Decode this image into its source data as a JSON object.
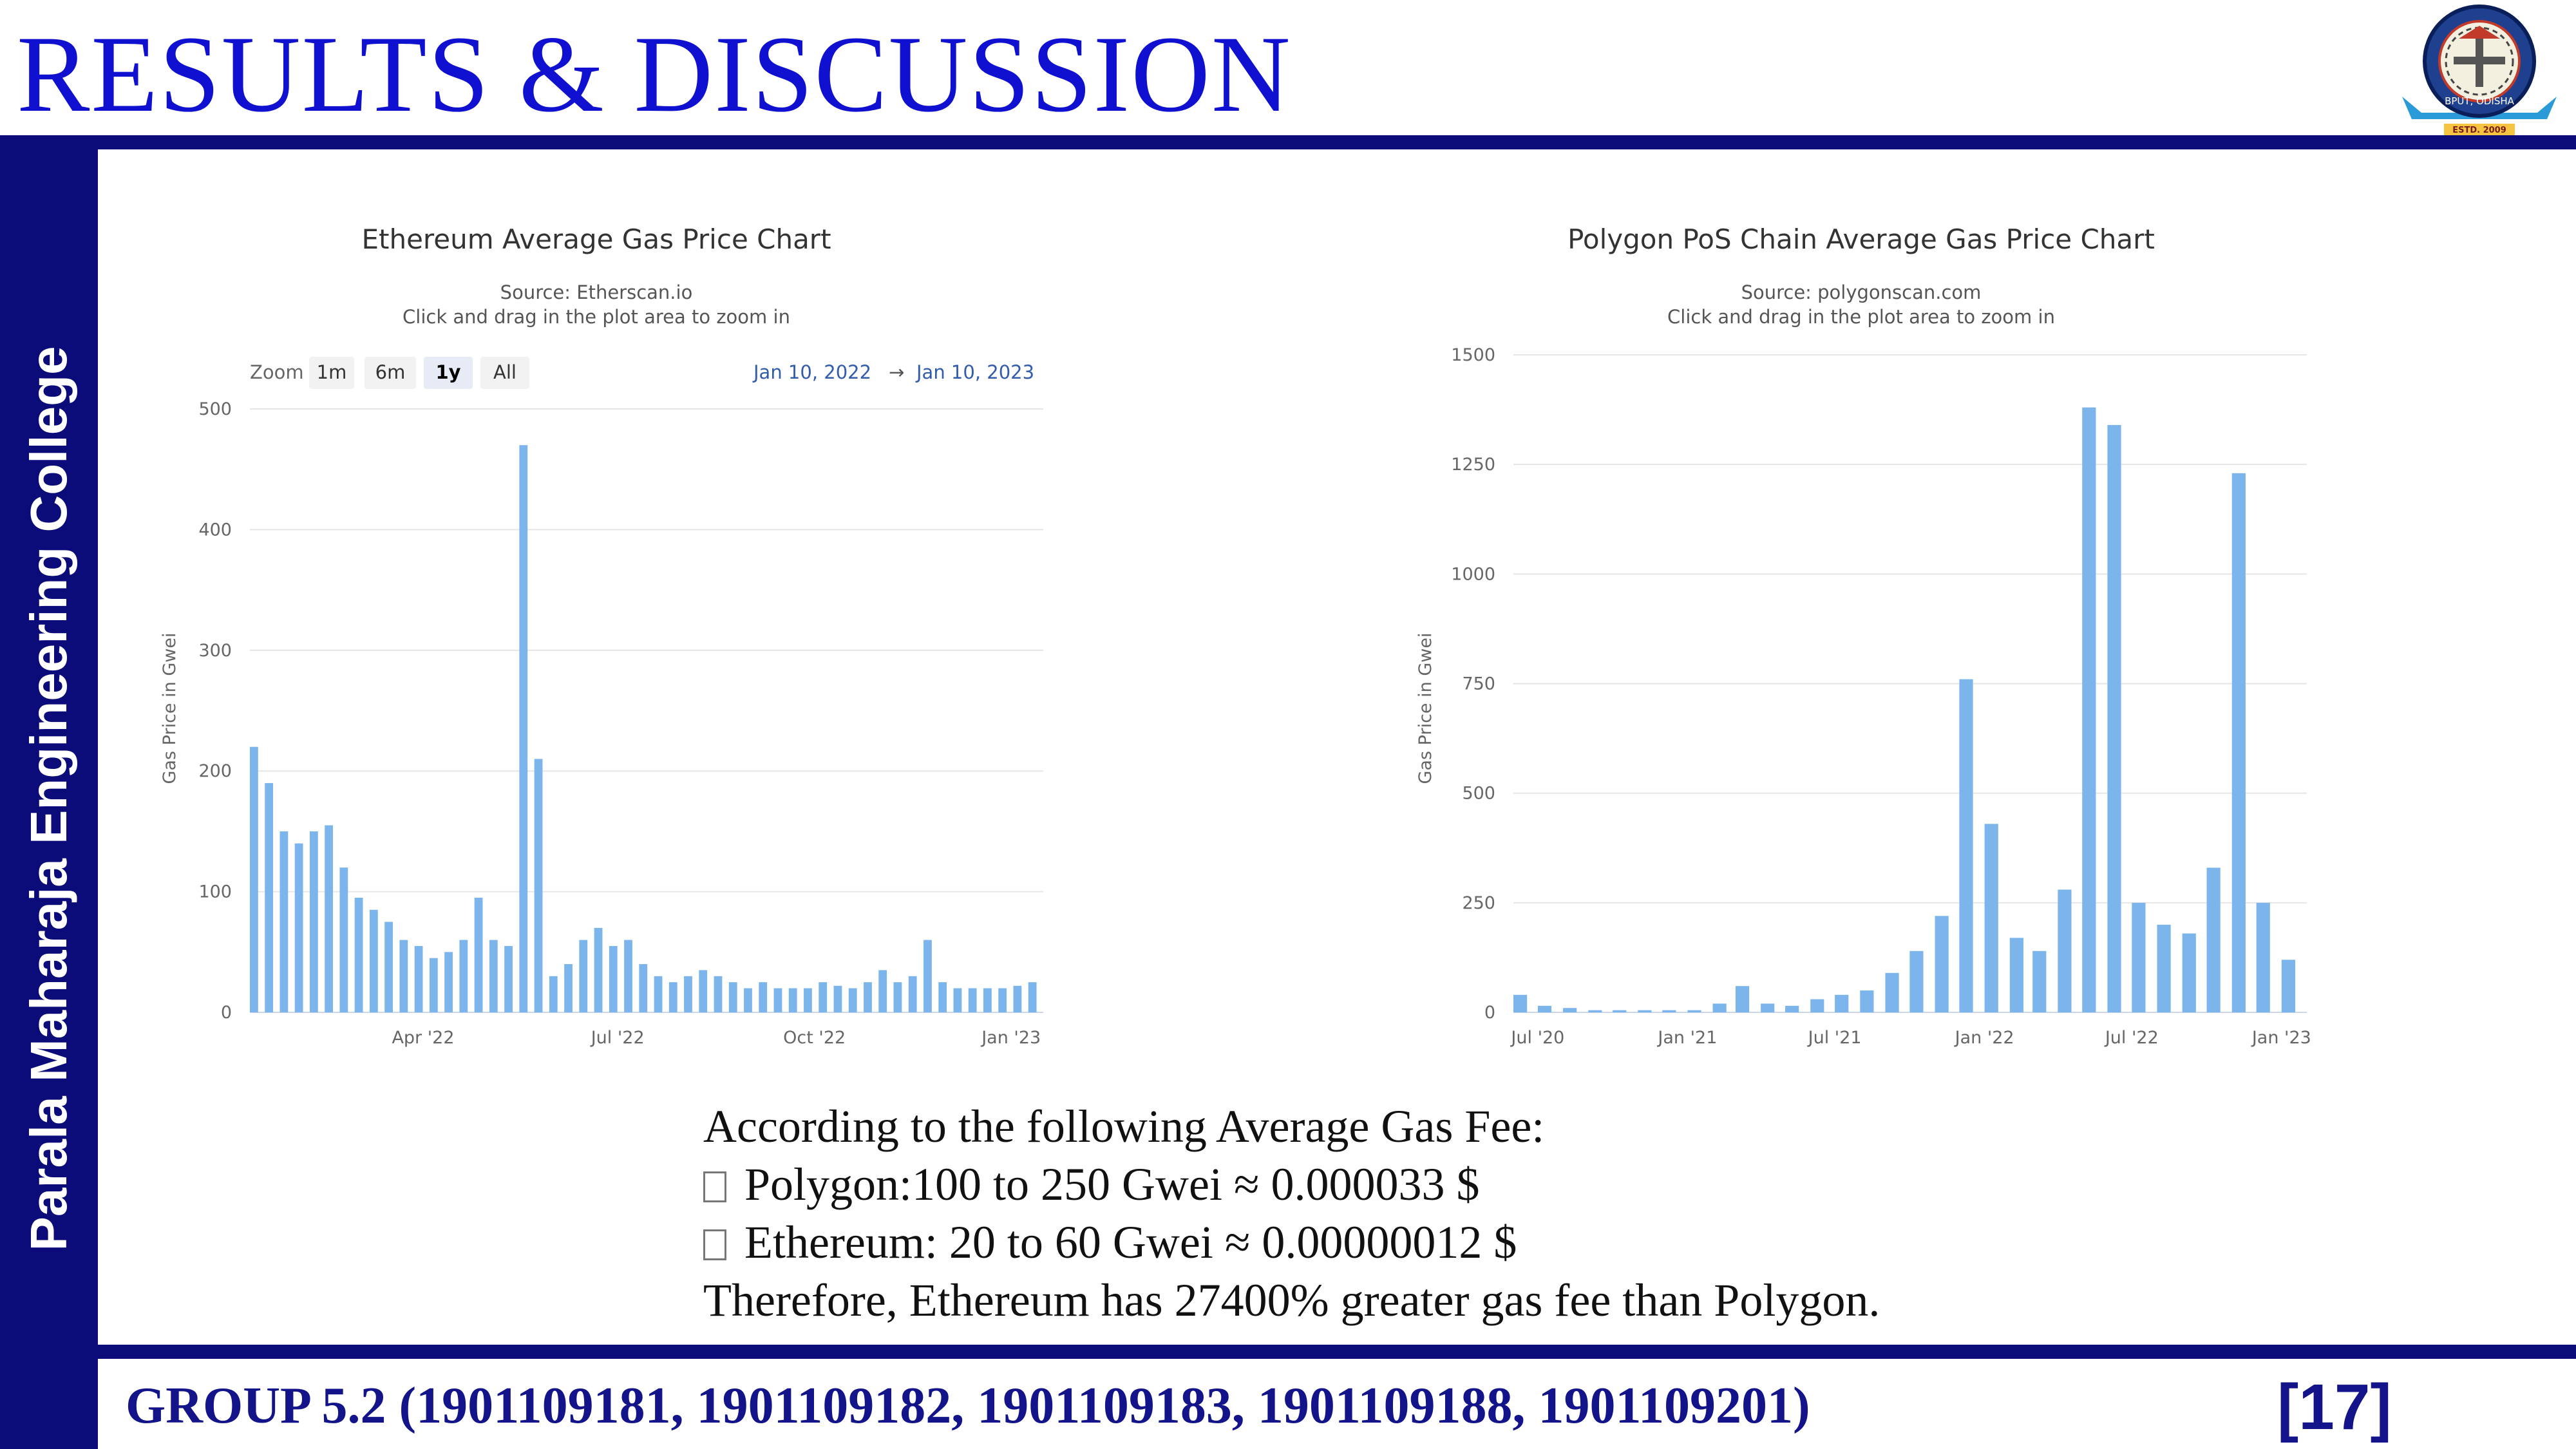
{
  "slide": {
    "title": "RESULTS & DISCUSSION",
    "side_label": "Parala Maharaja Engineering College",
    "footer": "GROUP 5.2 (1901109181, 1901109182, 1901109183, 1901109188, 1901109201)",
    "page_number": "[17]",
    "logo_text": "ESTD. 2009",
    "logo_arc_text": "BPUT, ODISHA"
  },
  "notes": {
    "intro": "According to the following Average Gas Fee:",
    "polygon": "Polygon:100 to 250 Gwei ≈ 0.000033 $",
    "ethereum": "Ethereum: 20 to 60 Gwei ≈ 0.00000012 $",
    "conclusion": "Therefore, Ethereum has 27400% greater gas fee than Polygon."
  },
  "colors": {
    "accent": "#0b0b7a",
    "title": "#1010d0",
    "bars": "#7cb5ec",
    "link": "#335cad"
  },
  "chart_data": [
    {
      "type": "bar",
      "title": "Ethereum Average Gas Price Chart",
      "subtitle": "Source: Etherscan.io",
      "hint": "Click and drag in the plot area to zoom in",
      "ylabel": "Gas Price in Gwei",
      "ylim": [
        0,
        500
      ],
      "yticks": [
        0,
        100,
        200,
        300,
        400,
        500
      ],
      "xticks": [
        "Apr '22",
        "Jul '22",
        "Oct '22",
        "Jan '23"
      ],
      "zoom": {
        "label": "Zoom",
        "buttons": [
          "1m",
          "6m",
          "1y",
          "All"
        ],
        "selected": "1y"
      },
      "range": {
        "from": "Jan 10, 2022",
        "arrow": "→",
        "to": "Jan 10, 2023"
      },
      "grid": true,
      "x": [
        "2022-01-10",
        "2022-01-17",
        "2022-01-24",
        "2022-01-31",
        "2022-02-07",
        "2022-02-14",
        "2022-02-21",
        "2022-02-28",
        "2022-03-07",
        "2022-03-14",
        "2022-03-21",
        "2022-03-28",
        "2022-04-04",
        "2022-04-11",
        "2022-04-18",
        "2022-04-25",
        "2022-05-02",
        "2022-05-09",
        "2022-05-16",
        "2022-05-23",
        "2022-05-30",
        "2022-06-06",
        "2022-06-13",
        "2022-06-20",
        "2022-06-27",
        "2022-07-04",
        "2022-07-11",
        "2022-07-18",
        "2022-07-25",
        "2022-08-01",
        "2022-08-08",
        "2022-08-15",
        "2022-08-22",
        "2022-08-29",
        "2022-09-05",
        "2022-09-12",
        "2022-09-19",
        "2022-09-26",
        "2022-10-03",
        "2022-10-10",
        "2022-10-17",
        "2022-10-24",
        "2022-10-31",
        "2022-11-07",
        "2022-11-14",
        "2022-11-21",
        "2022-11-28",
        "2022-12-05",
        "2022-12-12",
        "2022-12-19",
        "2022-12-26",
        "2023-01-02",
        "2023-01-09"
      ],
      "values": [
        220,
        190,
        150,
        140,
        150,
        155,
        120,
        95,
        85,
        75,
        60,
        55,
        45,
        50,
        60,
        95,
        60,
        55,
        470,
        210,
        30,
        40,
        60,
        70,
        55,
        60,
        40,
        30,
        25,
        30,
        35,
        30,
        25,
        20,
        25,
        20,
        20,
        20,
        25,
        22,
        20,
        25,
        35,
        25,
        30,
        60,
        25,
        20,
        20,
        20,
        20,
        22,
        25
      ]
    },
    {
      "type": "bar",
      "title": "Polygon PoS Chain Average Gas Price Chart",
      "subtitle": "Source: polygonscan.com",
      "hint": "Click and drag in the plot area to zoom in",
      "ylabel": "Gas Price in Gwei",
      "ylim": [
        0,
        1500
      ],
      "yticks": [
        0,
        250,
        500,
        750,
        1000,
        1250,
        1500
      ],
      "xticks": [
        "Jul '20",
        "Jan '21",
        "Jul '21",
        "Jan '22",
        "Jul '22",
        "Jan '23"
      ],
      "grid": true,
      "x": [
        "2020-06",
        "2020-07",
        "2020-08",
        "2020-09",
        "2020-10",
        "2020-11",
        "2020-12",
        "2021-01",
        "2021-02",
        "2021-03",
        "2021-04",
        "2021-05",
        "2021-06",
        "2021-07",
        "2021-08",
        "2021-09",
        "2021-10",
        "2021-11",
        "2021-12",
        "2022-01",
        "2022-02",
        "2022-03",
        "2022-04",
        "2022-05",
        "2022-06",
        "2022-07",
        "2022-08",
        "2022-09",
        "2022-10",
        "2022-11",
        "2022-12",
        "2023-01"
      ],
      "values": [
        40,
        15,
        10,
        5,
        5,
        5,
        5,
        5,
        20,
        60,
        20,
        15,
        30,
        40,
        50,
        90,
        140,
        220,
        760,
        430,
        170,
        140,
        280,
        1380,
        1340,
        250,
        200,
        180,
        330,
        1230,
        250,
        120
      ]
    }
  ]
}
